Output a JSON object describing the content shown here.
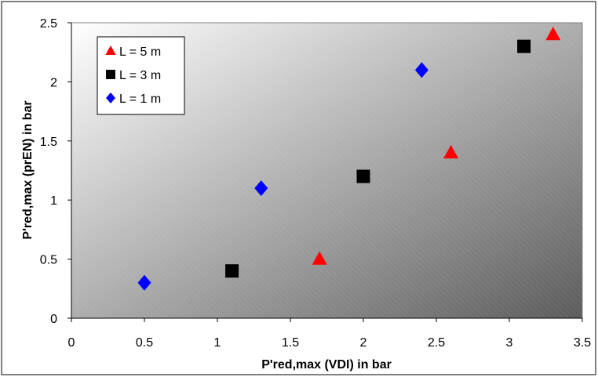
{
  "chart_data": {
    "type": "scatter",
    "title": "",
    "xlabel": "P'red,max (VDI) in bar",
    "ylabel": "P'red,max (prEN) in bar",
    "xlim": [
      0,
      3.5
    ],
    "ylim": [
      0,
      2.5
    ],
    "xticks": [
      "0",
      "0.5",
      "1",
      "1.5",
      "2",
      "2.5",
      "3",
      "3.5"
    ],
    "yticks": [
      "0",
      "0.5",
      "1",
      "1.5",
      "2",
      "2.5"
    ],
    "grid": false,
    "legend_position": "top-left",
    "series": [
      {
        "name": "L = 5 m",
        "marker": "triangle",
        "color": "#ff0000",
        "x": [
          1.7,
          2.6,
          3.3
        ],
        "y": [
          0.5,
          1.4,
          2.4
        ]
      },
      {
        "name": "L = 3 m",
        "marker": "square",
        "color": "#000000",
        "x": [
          1.1,
          2.0,
          3.1
        ],
        "y": [
          0.4,
          1.2,
          2.3
        ]
      },
      {
        "name": "L = 1 m",
        "marker": "diamond",
        "color": "#0000ff",
        "x": [
          0.5,
          1.3,
          2.4
        ],
        "y": [
          0.3,
          1.1,
          2.1
        ]
      }
    ]
  }
}
